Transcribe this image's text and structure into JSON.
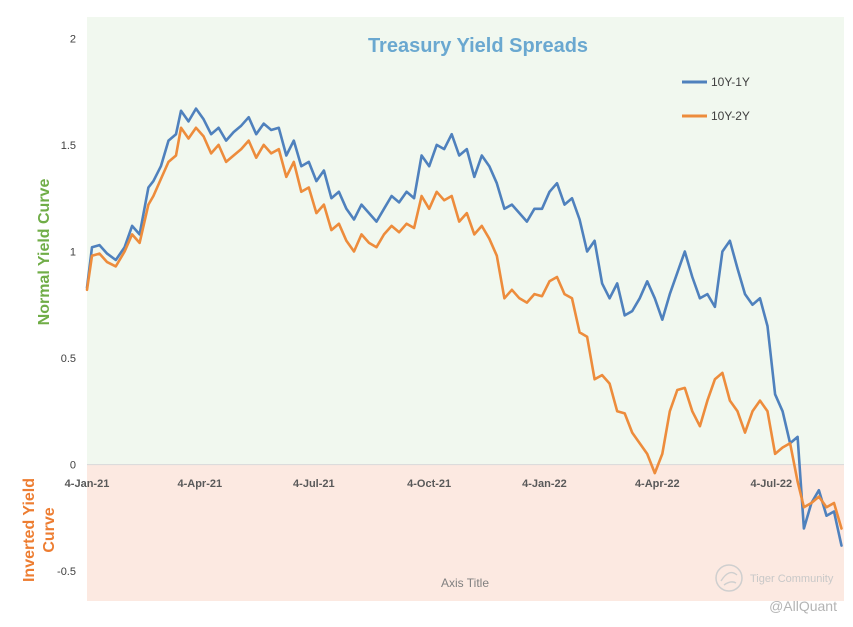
{
  "chart_data": {
    "type": "line",
    "title": "Treasury Yield Spreads",
    "xlabel": "Axis Title",
    "ylabel_upper": "Normal Yield  Curve",
    "ylabel_lower": [
      "Inverted Yield",
      "Curve"
    ],
    "ylim": [
      -0.64,
      2.1
    ],
    "xlim": [
      "2021-01-04",
      "2022-08-31"
    ],
    "x_ticks": [
      "4-Jan-21",
      "4-Apr-21",
      "4-Jul-21",
      "4-Oct-21",
      "4-Jan-22",
      "4-Apr-22",
      "4-Jul-22"
    ],
    "y_ticks": [
      {
        "value": 2,
        "label": "2"
      },
      {
        "value": 1.5,
        "label": "1.5"
      },
      {
        "value": 1,
        "label": "1"
      },
      {
        "value": 0.5,
        "label": "0.5"
      },
      {
        "value": 0,
        "label": "0"
      },
      {
        "value": -0.5,
        "label": "-0.5"
      }
    ],
    "regions": [
      {
        "name": "normal",
        "from": 0,
        "to": 2.1,
        "color": "#f1f8ef"
      },
      {
        "name": "inverted",
        "from": -0.64,
        "to": 0,
        "color": "#fce9e1"
      }
    ],
    "legend_position": "top-right",
    "series": [
      {
        "name": "10Y-1Y",
        "color": "#4f81bd",
        "points": [
          [
            "2021-01-04",
            0.83
          ],
          [
            "2021-01-08",
            1.02
          ],
          [
            "2021-01-14",
            1.03
          ],
          [
            "2021-01-20",
            0.99
          ],
          [
            "2021-01-27",
            0.96
          ],
          [
            "2021-02-03",
            1.02
          ],
          [
            "2021-02-09",
            1.12
          ],
          [
            "2021-02-15",
            1.08
          ],
          [
            "2021-02-22",
            1.3
          ],
          [
            "2021-02-26",
            1.33
          ],
          [
            "2021-03-04",
            1.4
          ],
          [
            "2021-03-10",
            1.52
          ],
          [
            "2021-03-16",
            1.55
          ],
          [
            "2021-03-20",
            1.66
          ],
          [
            "2021-03-26",
            1.61
          ],
          [
            "2021-04-01",
            1.67
          ],
          [
            "2021-04-07",
            1.62
          ],
          [
            "2021-04-13",
            1.55
          ],
          [
            "2021-04-19",
            1.58
          ],
          [
            "2021-04-25",
            1.52
          ],
          [
            "2021-05-01",
            1.56
          ],
          [
            "2021-05-07",
            1.59
          ],
          [
            "2021-05-13",
            1.63
          ],
          [
            "2021-05-19",
            1.55
          ],
          [
            "2021-05-25",
            1.6
          ],
          [
            "2021-05-31",
            1.57
          ],
          [
            "2021-06-06",
            1.58
          ],
          [
            "2021-06-12",
            1.45
          ],
          [
            "2021-06-18",
            1.52
          ],
          [
            "2021-06-24",
            1.4
          ],
          [
            "2021-06-30",
            1.42
          ],
          [
            "2021-07-06",
            1.33
          ],
          [
            "2021-07-12",
            1.38
          ],
          [
            "2021-07-18",
            1.25
          ],
          [
            "2021-07-24",
            1.28
          ],
          [
            "2021-07-30",
            1.2
          ],
          [
            "2021-08-05",
            1.15
          ],
          [
            "2021-08-11",
            1.22
          ],
          [
            "2021-08-17",
            1.18
          ],
          [
            "2021-08-23",
            1.14
          ],
          [
            "2021-08-29",
            1.2
          ],
          [
            "2021-09-04",
            1.26
          ],
          [
            "2021-09-10",
            1.23
          ],
          [
            "2021-09-16",
            1.28
          ],
          [
            "2021-09-22",
            1.25
          ],
          [
            "2021-09-28",
            1.45
          ],
          [
            "2021-10-04",
            1.4
          ],
          [
            "2021-10-10",
            1.5
          ],
          [
            "2021-10-16",
            1.48
          ],
          [
            "2021-10-22",
            1.55
          ],
          [
            "2021-10-28",
            1.45
          ],
          [
            "2021-11-03",
            1.48
          ],
          [
            "2021-11-09",
            1.35
          ],
          [
            "2021-11-15",
            1.45
          ],
          [
            "2021-11-21",
            1.4
          ],
          [
            "2021-11-27",
            1.32
          ],
          [
            "2021-12-03",
            1.2
          ],
          [
            "2021-12-09",
            1.22
          ],
          [
            "2021-12-15",
            1.18
          ],
          [
            "2021-12-21",
            1.14
          ],
          [
            "2021-12-27",
            1.2
          ],
          [
            "2022-01-02",
            1.2
          ],
          [
            "2022-01-08",
            1.28
          ],
          [
            "2022-01-14",
            1.32
          ],
          [
            "2022-01-20",
            1.22
          ],
          [
            "2022-01-26",
            1.25
          ],
          [
            "2022-02-01",
            1.15
          ],
          [
            "2022-02-07",
            1.0
          ],
          [
            "2022-02-13",
            1.05
          ],
          [
            "2022-02-19",
            0.85
          ],
          [
            "2022-02-25",
            0.78
          ],
          [
            "2022-03-03",
            0.85
          ],
          [
            "2022-03-09",
            0.7
          ],
          [
            "2022-03-15",
            0.72
          ],
          [
            "2022-03-21",
            0.78
          ],
          [
            "2022-03-27",
            0.86
          ],
          [
            "2022-04-02",
            0.78
          ],
          [
            "2022-04-08",
            0.68
          ],
          [
            "2022-04-14",
            0.8
          ],
          [
            "2022-04-20",
            0.9
          ],
          [
            "2022-04-26",
            1.0
          ],
          [
            "2022-05-02",
            0.88
          ],
          [
            "2022-05-08",
            0.78
          ],
          [
            "2022-05-14",
            0.8
          ],
          [
            "2022-05-20",
            0.74
          ],
          [
            "2022-05-26",
            1.0
          ],
          [
            "2022-06-01",
            1.05
          ],
          [
            "2022-06-07",
            0.92
          ],
          [
            "2022-06-13",
            0.8
          ],
          [
            "2022-06-19",
            0.75
          ],
          [
            "2022-06-25",
            0.78
          ],
          [
            "2022-07-01",
            0.65
          ],
          [
            "2022-07-07",
            0.33
          ],
          [
            "2022-07-13",
            0.25
          ],
          [
            "2022-07-19",
            0.1
          ],
          [
            "2022-07-25",
            0.13
          ],
          [
            "2022-07-30",
            -0.3
          ],
          [
            "2022-08-05",
            -0.18
          ],
          [
            "2022-08-11",
            -0.12
          ],
          [
            "2022-08-17",
            -0.24
          ],
          [
            "2022-08-23",
            -0.22
          ],
          [
            "2022-08-29",
            -0.38
          ]
        ]
      },
      {
        "name": "10Y-2Y",
        "color": "#ed8c3c",
        "points": [
          [
            "2021-01-04",
            0.82
          ],
          [
            "2021-01-08",
            0.98
          ],
          [
            "2021-01-14",
            0.99
          ],
          [
            "2021-01-20",
            0.95
          ],
          [
            "2021-01-27",
            0.93
          ],
          [
            "2021-02-03",
            1.0
          ],
          [
            "2021-02-09",
            1.08
          ],
          [
            "2021-02-15",
            1.04
          ],
          [
            "2021-02-22",
            1.22
          ],
          [
            "2021-02-26",
            1.26
          ],
          [
            "2021-03-04",
            1.34
          ],
          [
            "2021-03-10",
            1.42
          ],
          [
            "2021-03-16",
            1.45
          ],
          [
            "2021-03-20",
            1.58
          ],
          [
            "2021-03-26",
            1.53
          ],
          [
            "2021-04-01",
            1.58
          ],
          [
            "2021-04-07",
            1.54
          ],
          [
            "2021-04-13",
            1.46
          ],
          [
            "2021-04-19",
            1.5
          ],
          [
            "2021-04-25",
            1.42
          ],
          [
            "2021-05-01",
            1.45
          ],
          [
            "2021-05-07",
            1.48
          ],
          [
            "2021-05-13",
            1.52
          ],
          [
            "2021-05-19",
            1.44
          ],
          [
            "2021-05-25",
            1.5
          ],
          [
            "2021-05-31",
            1.46
          ],
          [
            "2021-06-06",
            1.48
          ],
          [
            "2021-06-12",
            1.35
          ],
          [
            "2021-06-18",
            1.42
          ],
          [
            "2021-06-24",
            1.28
          ],
          [
            "2021-06-30",
            1.3
          ],
          [
            "2021-07-06",
            1.18
          ],
          [
            "2021-07-12",
            1.22
          ],
          [
            "2021-07-18",
            1.1
          ],
          [
            "2021-07-24",
            1.13
          ],
          [
            "2021-07-30",
            1.05
          ],
          [
            "2021-08-05",
            1.0
          ],
          [
            "2021-08-11",
            1.08
          ],
          [
            "2021-08-17",
            1.04
          ],
          [
            "2021-08-23",
            1.02
          ],
          [
            "2021-08-29",
            1.08
          ],
          [
            "2021-09-04",
            1.12
          ],
          [
            "2021-09-10",
            1.09
          ],
          [
            "2021-09-16",
            1.13
          ],
          [
            "2021-09-22",
            1.11
          ],
          [
            "2021-09-28",
            1.26
          ],
          [
            "2021-10-04",
            1.2
          ],
          [
            "2021-10-10",
            1.28
          ],
          [
            "2021-10-16",
            1.24
          ],
          [
            "2021-10-22",
            1.26
          ],
          [
            "2021-10-28",
            1.14
          ],
          [
            "2021-11-03",
            1.18
          ],
          [
            "2021-11-09",
            1.08
          ],
          [
            "2021-11-15",
            1.12
          ],
          [
            "2021-11-21",
            1.06
          ],
          [
            "2021-11-27",
            0.98
          ],
          [
            "2021-12-03",
            0.78
          ],
          [
            "2021-12-09",
            0.82
          ],
          [
            "2021-12-15",
            0.78
          ],
          [
            "2021-12-21",
            0.76
          ],
          [
            "2021-12-27",
            0.8
          ],
          [
            "2022-01-02",
            0.79
          ],
          [
            "2022-01-08",
            0.86
          ],
          [
            "2022-01-14",
            0.88
          ],
          [
            "2022-01-20",
            0.8
          ],
          [
            "2022-01-26",
            0.78
          ],
          [
            "2022-02-01",
            0.62
          ],
          [
            "2022-02-07",
            0.6
          ],
          [
            "2022-02-13",
            0.4
          ],
          [
            "2022-02-19",
            0.42
          ],
          [
            "2022-02-25",
            0.38
          ],
          [
            "2022-03-03",
            0.25
          ],
          [
            "2022-03-09",
            0.24
          ],
          [
            "2022-03-15",
            0.15
          ],
          [
            "2022-03-21",
            0.1
          ],
          [
            "2022-03-27",
            0.05
          ],
          [
            "2022-04-02",
            -0.04
          ],
          [
            "2022-04-08",
            0.05
          ],
          [
            "2022-04-14",
            0.25
          ],
          [
            "2022-04-20",
            0.35
          ],
          [
            "2022-04-26",
            0.36
          ],
          [
            "2022-05-02",
            0.25
          ],
          [
            "2022-05-08",
            0.18
          ],
          [
            "2022-05-14",
            0.3
          ],
          [
            "2022-05-20",
            0.4
          ],
          [
            "2022-05-26",
            0.43
          ],
          [
            "2022-06-01",
            0.3
          ],
          [
            "2022-06-07",
            0.25
          ],
          [
            "2022-06-13",
            0.15
          ],
          [
            "2022-06-19",
            0.25
          ],
          [
            "2022-06-25",
            0.3
          ],
          [
            "2022-07-01",
            0.25
          ],
          [
            "2022-07-07",
            0.05
          ],
          [
            "2022-07-13",
            0.08
          ],
          [
            "2022-07-19",
            0.1
          ],
          [
            "2022-07-25",
            -0.08
          ],
          [
            "2022-07-30",
            -0.2
          ],
          [
            "2022-08-05",
            -0.18
          ],
          [
            "2022-08-11",
            -0.15
          ],
          [
            "2022-08-17",
            -0.2
          ],
          [
            "2022-08-23",
            -0.18
          ],
          [
            "2022-08-29",
            -0.3
          ]
        ]
      }
    ]
  },
  "watermark": "Tiger Community",
  "credit": "@AllQuant"
}
